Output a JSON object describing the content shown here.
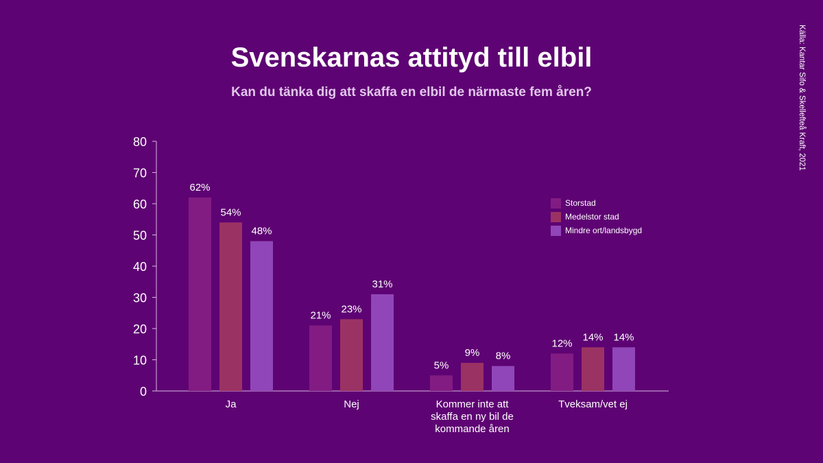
{
  "title": "Svenskarnas attityd till elbil",
  "subtitle": "Kan du tänka dig att skaffa en elbil de närmaste fem åren?",
  "source": "Källa: Kantar Sifo & Skellefteå Kraft, 2021",
  "colors": {
    "background": "#5e0373",
    "axis": "#d9b8e6"
  },
  "chart_data": {
    "type": "bar",
    "categories": [
      [
        "Ja"
      ],
      [
        "Nej"
      ],
      [
        "Kommer inte att",
        "skaffa en ny bil de",
        "kommande åren"
      ],
      [
        "Tveksam/vet ej"
      ]
    ],
    "series": [
      {
        "name": "Storstad",
        "color": "#821c83",
        "values": [
          62,
          21,
          5,
          12
        ],
        "labels": [
          "62%",
          "21%",
          "5%",
          "12%"
        ]
      },
      {
        "name": "Medelstor stad",
        "color": "#9b3264",
        "values": [
          54,
          23,
          9,
          14
        ],
        "labels": [
          "54%",
          "23%",
          "9%",
          "14%"
        ]
      },
      {
        "name": "Mindre ort/landsbygd",
        "color": "#9046b8",
        "values": [
          48,
          31,
          8,
          14
        ],
        "labels": [
          "48%",
          "31%",
          "8%",
          "14%"
        ]
      }
    ],
    "ylim": [
      0,
      80
    ],
    "yticks": [
      0,
      10,
      20,
      30,
      40,
      50,
      60,
      70,
      80
    ],
    "legend_position": "right",
    "grid": false
  }
}
